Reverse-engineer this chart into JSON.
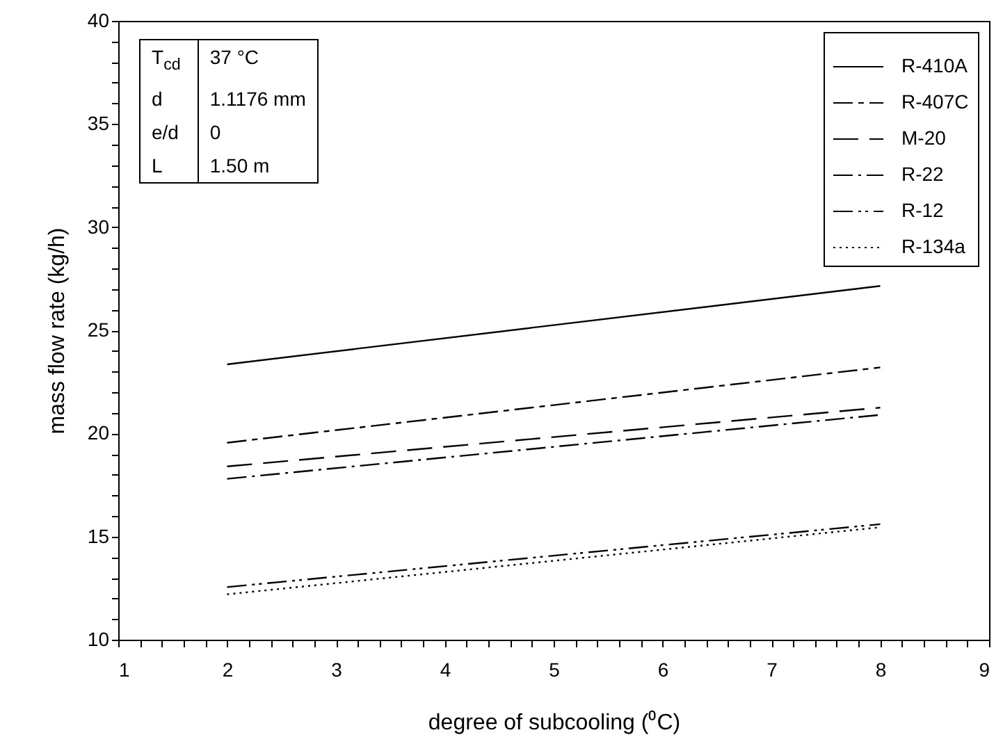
{
  "chart_data": {
    "type": "line",
    "xlabel": "degree of subcooling (⁰C)",
    "ylabel": "mass flow rate (kg/h)",
    "x": [
      2,
      8
    ],
    "series": [
      {
        "name": "R-410A",
        "color": "#000000",
        "line_style": "solid",
        "values": [
          23.35,
          27.15
        ]
      },
      {
        "name": "R-407C",
        "color": "#000000",
        "line_style": "dashed",
        "values": [
          19.55,
          23.2
        ]
      },
      {
        "name": "M-20",
        "color": "#000000",
        "line_style": "longdashed",
        "values": [
          18.4,
          21.25
        ]
      },
      {
        "name": "R-22",
        "color": "#000000",
        "line_style": "dashdot",
        "values": [
          17.8,
          20.9
        ]
      },
      {
        "name": "R-12",
        "color": "#000000",
        "line_style": "dashdotdot",
        "values": [
          12.55,
          15.6
        ]
      },
      {
        "name": "R-134a",
        "color": "#000000",
        "line_style": "dotted",
        "values": [
          12.2,
          15.45
        ]
      }
    ],
    "xlim": [
      1,
      9
    ],
    "ylim": [
      10,
      40
    ],
    "xticks": [
      1,
      {
        "value": 1.2,
        "label": null
      },
      {
        "value": 1.4,
        "label": null
      },
      {
        "value": 1.6,
        "label": null
      },
      {
        "value": 1.8,
        "label": null
      },
      2,
      {
        "value": 2.2,
        "label": null
      },
      {
        "value": 2.4,
        "label": null
      },
      {
        "value": 2.6,
        "label": null
      },
      {
        "value": 2.8,
        "label": null
      },
      3,
      {
        "value": 3.2,
        "label": null
      },
      {
        "value": 3.4,
        "label": null
      },
      {
        "value": 3.6,
        "label": null
      },
      {
        "value": 3.8,
        "label": null
      },
      4,
      {
        "value": 4.2,
        "label": null
      },
      {
        "value": 4.4,
        "label": null
      },
      {
        "value": 4.6,
        "label": null
      },
      {
        "value": 4.8,
        "label": null
      },
      5,
      {
        "value": 5.2,
        "label": null
      },
      {
        "value": 5.4,
        "label": null
      },
      {
        "value": 5.6,
        "label": null
      },
      {
        "value": 5.8,
        "label": null
      },
      6,
      {
        "value": 6.2,
        "label": null
      },
      {
        "value": 6.4,
        "label": null
      },
      {
        "value": 6.6,
        "label": null
      },
      {
        "value": 6.8,
        "label": null
      },
      7,
      {
        "value": 7.2,
        "label": null
      },
      {
        "value": 7.4,
        "label": null
      },
      {
        "value": 7.6,
        "label": null
      },
      {
        "value": 7.8,
        "label": null
      },
      8,
      {
        "value": 8.2,
        "label": null
      },
      {
        "value": 8.4,
        "label": null
      },
      {
        "value": 8.6,
        "label": null
      },
      {
        "value": 8.8,
        "label": null
      },
      9
    ],
    "yticks": [
      10,
      {
        "value": 11,
        "label": null
      },
      {
        "value": 12,
        "label": null
      },
      {
        "value": 13,
        "label": null
      },
      {
        "value": 14,
        "label": null
      },
      15,
      {
        "value": 16,
        "label": null
      },
      {
        "value": 17,
        "label": null
      },
      {
        "value": 18,
        "label": null
      },
      {
        "value": 19,
        "label": null
      },
      20,
      {
        "value": 21,
        "label": null
      },
      {
        "value": 22,
        "label": null
      },
      {
        "value": 23,
        "label": null
      },
      {
        "value": 24,
        "label": null
      },
      25,
      {
        "value": 26,
        "label": null
      },
      {
        "value": 27,
        "label": null
      },
      {
        "value": 28,
        "label": null
      },
      {
        "value": 29,
        "label": null
      },
      30,
      {
        "value": 31,
        "label": null
      },
      {
        "value": 32,
        "label": null
      },
      {
        "value": 33,
        "label": null
      },
      {
        "value": 34,
        "label": null
      },
      35,
      {
        "value": 36,
        "label": null
      },
      {
        "value": 37,
        "label": null
      },
      {
        "value": 38,
        "label": null
      },
      {
        "value": 39,
        "label": null
      },
      40
    ],
    "legend": "top right",
    "grid": false,
    "annotations": [
      "T$_{cd}$",
      "37 °C",
      "d",
      "1.1176 mm",
      "e/d",
      "0",
      "L",
      "1.50 m"
    ]
  }
}
